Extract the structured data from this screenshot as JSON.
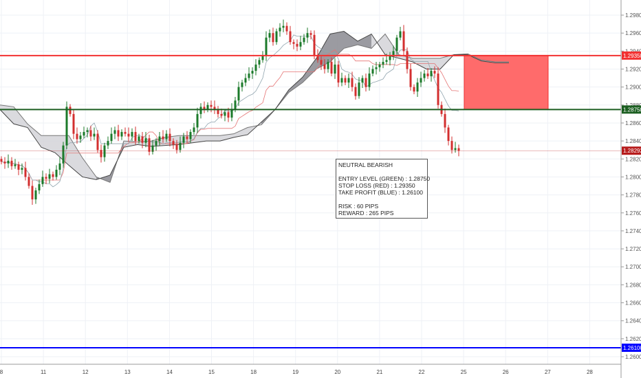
{
  "chart_data": {
    "type": "candlestick",
    "y_axis": {
      "min": 1.2596,
      "max": 1.2997,
      "ticks": [
        1.298,
        1.296,
        1.294,
        1.292,
        1.29,
        1.288,
        1.286,
        1.284,
        1.282,
        1.28,
        1.278,
        1.276,
        1.274,
        1.272,
        1.27,
        1.268,
        1.266,
        1.264,
        1.262,
        1.26
      ],
      "position": "right",
      "grid": true
    },
    "x_axis": {
      "tick_labels": [
        "8",
        "11",
        "12",
        "13",
        "14",
        "15",
        "18",
        "19",
        "20",
        "21",
        "22",
        "25",
        "26",
        "27",
        "28"
      ],
      "grid": true
    },
    "closes": [
      1.2817,
      1.2815,
      1.2818,
      1.2812,
      1.2814,
      1.2808,
      1.281,
      1.28,
      1.279,
      1.2775,
      1.2785,
      1.2792,
      1.28,
      1.2798,
      1.2803,
      1.28,
      1.2808,
      1.2815,
      1.2835,
      1.2878,
      1.287,
      1.2848,
      1.2842,
      1.2846,
      1.285,
      1.2852,
      1.2845,
      1.2848,
      1.283,
      1.2822,
      1.2835,
      1.284,
      1.2848,
      1.2852,
      1.2845,
      1.285,
      1.2848,
      1.2845,
      1.285,
      1.284,
      1.2845,
      1.2838,
      1.2843,
      1.2828,
      1.2835,
      1.284,
      1.2845,
      1.2842,
      1.2848,
      1.284,
      1.2836,
      1.283,
      1.2838,
      1.2845,
      1.2842,
      1.285,
      1.2855,
      1.287,
      1.2878,
      1.2875,
      1.288,
      1.2878,
      1.2875,
      1.287,
      1.2868,
      1.2872,
      1.2866,
      1.2875,
      1.2885,
      1.29,
      1.2905,
      1.291,
      1.2915,
      1.2918,
      1.2925,
      1.293,
      1.2935,
      1.2955,
      1.296,
      1.295,
      1.2962,
      1.2966,
      1.2968,
      1.2962,
      1.295,
      1.2948,
      1.2945,
      1.295,
      1.2955,
      1.296,
      1.2958,
      1.2935,
      1.293,
      1.2925,
      1.292,
      1.2928,
      1.2915,
      1.2925,
      1.2905,
      1.291,
      1.2905,
      1.291,
      1.29,
      1.289,
      1.2905,
      1.291,
      1.29,
      1.2915,
      1.292,
      1.2922,
      1.2925,
      1.2928,
      1.293,
      1.2935,
      1.294,
      1.2955,
      1.2962,
      1.294,
      1.292,
      1.29,
      1.2895,
      1.2905,
      1.291,
      1.2915,
      1.2912,
      1.2918,
      1.2915,
      1.288,
      1.287,
      1.2855,
      1.284,
      1.283,
      1.2832,
      1.2829
    ],
    "ichimoku_cloud": {
      "span_a": [
        1.288,
        1.2878,
        1.2859,
        1.2846,
        1.2846,
        1.2846,
        1.2821,
        1.28,
        1.2794,
        1.284,
        1.2839,
        1.284,
        1.2844,
        1.2846,
        1.2846,
        1.2846,
        1.2846,
        1.2848,
        1.2855,
        1.2858,
        1.2875,
        1.2894,
        1.2905,
        1.292,
        1.2928,
        1.2943,
        1.2947,
        1.2943,
        1.2959,
        1.2936,
        1.2932,
        1.2932,
        1.2932,
        1.2936,
        1.2937,
        1.293,
        1.2928,
        1.2928
      ],
      "span_b": [
        1.2875,
        1.2859,
        1.2855,
        1.2833,
        1.2827,
        1.2813,
        1.28,
        1.2797,
        1.2802,
        1.2833,
        1.2836,
        1.2834,
        1.2835,
        1.2836,
        1.2838,
        1.284,
        1.284,
        1.2844,
        1.2847,
        1.2861,
        1.2875,
        1.2897,
        1.2911,
        1.2932,
        1.2959,
        1.2962,
        1.2951,
        1.2959,
        1.2936,
        1.2932,
        1.2928,
        1.292,
        1.292,
        1.2936,
        1.2936,
        1.2929,
        1.2927,
        1.2927
      ]
    },
    "levels": [
      {
        "label": "1.29350",
        "price": 1.2935,
        "color": "#f23030"
      },
      {
        "label": "1.28750",
        "price": 1.2875,
        "color": "#1b5e20"
      },
      {
        "label": "1.26100",
        "price": 1.261,
        "color": "#0000ff"
      },
      {
        "label": "1.28292",
        "price": 1.28292,
        "color": "#b71c1c"
      }
    ],
    "risk_zone": {
      "from": 1.2875,
      "to": 1.2935,
      "color": "#ff6b6b"
    },
    "reward_zone": {
      "from": 1.261,
      "to": 1.2875,
      "color": "#6f8f63"
    },
    "colors": {
      "up": "#1b7a2a",
      "down": "#d32f2f",
      "cloud_dark": "#8a8a90",
      "cloud_light": "#d4d4d8"
    }
  },
  "note": {
    "title": "NEUTRAL BEARISH",
    "entry": "ENTRY LEVEL (GREEN) : 1.28750",
    "stop": "STOP LOSS (RED) : 1.29350",
    "target": "TAKE PROFIT (BLUE) : 1.26100",
    "risk": "RISK : 60 PIPS",
    "reward": "REWARD : 265 PIPS"
  }
}
